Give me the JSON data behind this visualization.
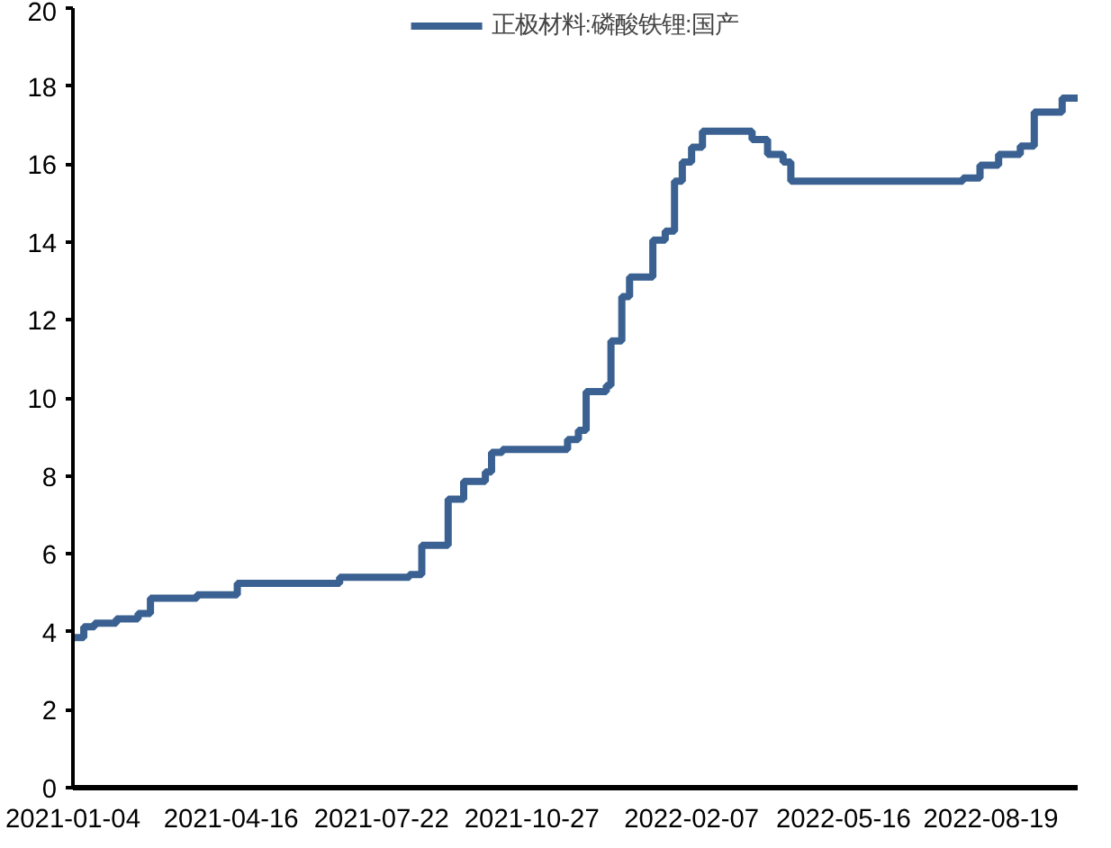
{
  "chart_data": {
    "type": "step",
    "x": [
      "2021-01-04",
      "2021-01-11",
      "2021-01-18",
      "2021-02-01",
      "2021-02-15",
      "2021-02-23",
      "2021-03-25",
      "2021-04-20",
      "2021-06-25",
      "2021-08-09",
      "2021-08-17",
      "2021-09-03",
      "2021-09-13",
      "2021-09-27",
      "2021-10-01",
      "2021-10-08",
      "2021-11-19",
      "2021-11-26",
      "2021-12-01",
      "2021-12-14",
      "2021-12-17",
      "2021-12-24",
      "2021-12-29",
      "2022-01-13",
      "2022-01-21",
      "2022-01-27",
      "2022-02-01",
      "2022-02-07",
      "2022-02-14",
      "2022-03-18",
      "2022-03-28",
      "2022-04-07",
      "2022-04-12",
      "2022-08-01",
      "2022-08-12",
      "2022-08-24",
      "2022-09-07",
      "2022-09-16",
      "2022-10-04",
      "2022-10-14"
    ],
    "series": [
      {
        "name": "正极材料:磷酸铁锂:国产",
        "color": "#3a6191",
        "values": [
          3.85,
          4.13,
          4.22,
          4.33,
          4.47,
          4.86,
          4.95,
          5.24,
          5.4,
          5.47,
          6.22,
          7.4,
          7.86,
          8.1,
          8.6,
          8.68,
          8.93,
          9.17,
          10.16,
          10.32,
          11.46,
          12.6,
          13.1,
          14.05,
          14.28,
          15.56,
          16.05,
          16.43,
          16.84,
          16.63,
          16.25,
          16.05,
          15.56,
          15.64,
          15.97,
          16.25,
          16.46,
          17.33,
          17.69,
          17.69
        ]
      }
    ],
    "xlim": [
      "2021-01-04",
      "2022-10-14"
    ],
    "xticks": [
      "2021-01-04",
      "2021-04-16",
      "2021-07-22",
      "2021-10-27",
      "2022-02-07",
      "2022-05-16",
      "2022-08-19"
    ],
    "ylim": [
      0,
      20
    ],
    "yticks": [
      0,
      2,
      4,
      6,
      8,
      10,
      12,
      14,
      16,
      18,
      20
    ],
    "grid": false,
    "legend": "top",
    "line_style": "solid",
    "marker": "none"
  }
}
